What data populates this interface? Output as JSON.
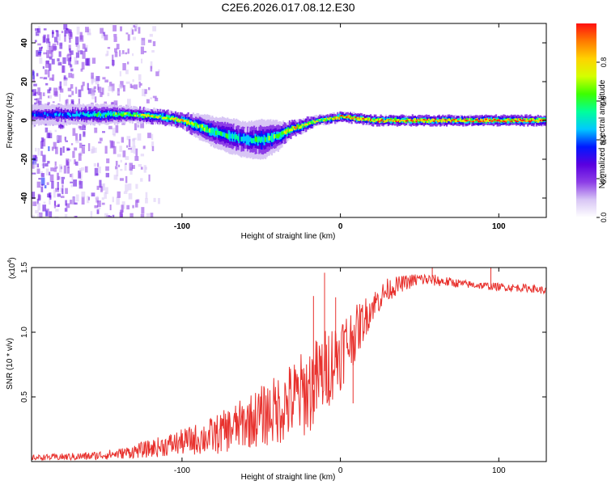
{
  "title": "C2E6.2026.017.08.12.E30",
  "chart_data": [
    {
      "type": "heatmap",
      "name": "spectrogram",
      "xlabel": "Height of straight line (km)",
      "ylabel": "Frequency (Hz)",
      "xlim": [
        -195,
        130
      ],
      "ylim": [
        -50,
        50
      ],
      "xticks": [
        -100,
        0,
        100
      ],
      "yticks": [
        -40,
        -20,
        0,
        20,
        40
      ],
      "colorbar": {
        "label": "Normalized spectral amplitude",
        "range": [
          0,
          1
        ],
        "ticks": [
          "0.0",
          "0.2",
          "0.4",
          "0.6",
          "0.8"
        ],
        "tick_values": [
          0,
          0.2,
          0.4,
          0.6,
          0.8
        ],
        "colormap": [
          "#ffffff",
          "#d8c6f5",
          "#8d3ee6",
          "#5a00e0",
          "#0018ff",
          "#00c8ff",
          "#00ff9a",
          "#3cff00",
          "#d4ff00",
          "#ffd200",
          "#ff7a00",
          "#ff1010"
        ]
      },
      "ridge": {
        "x": [
          -195,
          -170,
          -150,
          -130,
          -115,
          -100,
          -90,
          -80,
          -70,
          -60,
          -50,
          -40,
          -35,
          -30,
          -25,
          -15,
          -5,
          0,
          10,
          20,
          40,
          60,
          80,
          100,
          130
        ],
        "freq": [
          3,
          3,
          3,
          3,
          2,
          0,
          -3,
          -6,
          -8,
          -10,
          -10,
          -8,
          -6,
          -4,
          -3,
          0,
          1,
          2,
          1,
          0,
          0,
          0,
          0,
          0,
          0
        ],
        "amplitude": [
          0.35,
          0.45,
          0.55,
          0.65,
          0.7,
          0.75,
          0.65,
          0.55,
          0.5,
          0.5,
          0.55,
          0.6,
          0.7,
          0.8,
          0.75,
          0.7,
          0.75,
          0.85,
          0.85,
          0.9,
          0.85,
          0.9,
          0.9,
          0.95,
          0.9
        ],
        "width": [
          4,
          4,
          4,
          3,
          3,
          3,
          5,
          6,
          7,
          7,
          8,
          6,
          4,
          3,
          3,
          2,
          2,
          2,
          2,
          2,
          2,
          2,
          2,
          2,
          2
        ]
      },
      "noise_extent_x": [
        -195,
        -115
      ]
    },
    {
      "type": "line",
      "name": "snr",
      "xlabel": "Height of straight line (km)",
      "ylabel": "SNR (10 * v/v)",
      "scale_label": "(x10",
      "scale_exp": "4",
      "xlim": [
        -195,
        130
      ],
      "ylim": [
        0,
        1.5
      ],
      "xticks": [
        -100,
        0,
        100
      ],
      "yticks": [
        "0.5",
        "1.0",
        "1.5"
      ],
      "ytick_values": [
        0.5,
        1.0,
        1.5
      ],
      "color": "#e8322e",
      "trend": {
        "x": [
          -195,
          -160,
          -140,
          -120,
          -100,
          -80,
          -60,
          -40,
          -20,
          -10,
          0,
          10,
          20,
          30,
          40,
          50,
          60,
          80,
          100,
          120,
          130
        ],
        "y": [
          0.03,
          0.04,
          0.06,
          0.1,
          0.15,
          0.2,
          0.3,
          0.4,
          0.55,
          0.7,
          0.85,
          1.0,
          1.2,
          1.33,
          1.38,
          1.41,
          1.4,
          1.37,
          1.35,
          1.34,
          1.32
        ]
      },
      "noise_amplitude": {
        "x": [
          -195,
          -140,
          -100,
          -60,
          -20,
          0,
          20,
          40,
          80,
          130
        ],
        "y": [
          0.02,
          0.04,
          0.1,
          0.2,
          0.35,
          0.3,
          0.12,
          0.06,
          0.03,
          0.03
        ]
      },
      "spikes": [
        {
          "x": -10,
          "y": 1.46
        },
        {
          "x": -17,
          "y": 1.28
        },
        {
          "x": -3,
          "y": 1.27
        },
        {
          "x": 58,
          "y": 1.5
        },
        {
          "x": 95,
          "y": 1.52
        },
        {
          "x": 8,
          "y": 0.45
        }
      ]
    }
  ]
}
